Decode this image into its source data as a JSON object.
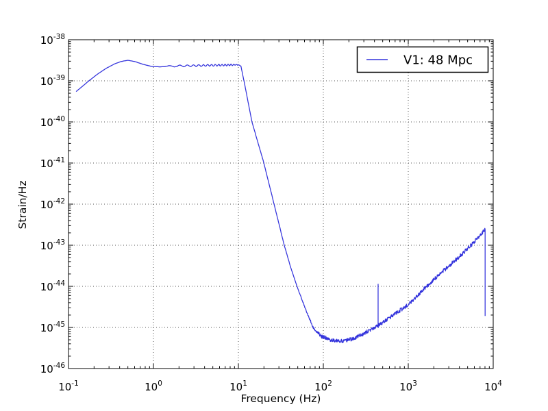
{
  "chart_data": {
    "type": "line",
    "title": "",
    "xlabel": "Frequency (Hz)",
    "ylabel": "Strain/Hz",
    "xscale": "log",
    "yscale": "log",
    "xlim": [
      0.1,
      10000
    ],
    "ylim": [
      1e-46,
      1e-38
    ],
    "x_tick_exponents": [
      -1,
      0,
      1,
      2,
      3,
      4
    ],
    "y_tick_exponents": [
      -38,
      -39,
      -40,
      -41,
      -42,
      -43,
      -44,
      -45,
      -46
    ],
    "grid": {
      "style": "dotted",
      "which": "major",
      "color": "#555555"
    },
    "legend": {
      "position": "upper-right",
      "entries": [
        {
          "label": "V1: 48 Mpc",
          "color": "#3232dc"
        }
      ]
    },
    "series": [
      {
        "name": "V1: 48 Mpc",
        "color": "#3232dc",
        "anchors_loglog": [
          [
            -0.91,
            -39.26
          ],
          [
            -0.84,
            -39.14
          ],
          [
            -0.76,
            -39.0
          ],
          [
            -0.66,
            -38.84
          ],
          [
            -0.56,
            -38.7
          ],
          [
            -0.46,
            -38.59
          ],
          [
            -0.38,
            -38.53
          ],
          [
            -0.3,
            -38.5
          ],
          [
            -0.22,
            -38.53
          ],
          [
            -0.12,
            -38.6
          ],
          [
            -0.02,
            -38.65
          ],
          [
            0.08,
            -38.66
          ],
          [
            0.25,
            -38.64
          ],
          [
            0.5,
            -38.63
          ],
          [
            0.75,
            -38.62
          ],
          [
            1.0,
            -38.61
          ],
          [
            1.03,
            -38.64
          ],
          [
            1.08,
            -39.15
          ],
          [
            1.16,
            -40.0
          ],
          [
            1.23,
            -40.5
          ],
          [
            1.3,
            -41.0
          ],
          [
            1.36,
            -41.5
          ],
          [
            1.42,
            -42.0
          ],
          [
            1.48,
            -42.5
          ],
          [
            1.54,
            -43.0
          ],
          [
            1.61,
            -43.5
          ],
          [
            1.69,
            -44.0
          ],
          [
            1.78,
            -44.5
          ],
          [
            1.88,
            -45.0
          ],
          [
            1.98,
            -45.22
          ],
          [
            2.1,
            -45.31
          ],
          [
            2.22,
            -45.33
          ],
          [
            2.35,
            -45.28
          ],
          [
            2.5,
            -45.12
          ],
          [
            2.645,
            -44.96
          ],
          [
            2.8,
            -44.73
          ],
          [
            3.0,
            -44.45
          ],
          [
            3.2,
            -44.03
          ],
          [
            3.4,
            -43.65
          ],
          [
            3.6,
            -43.28
          ],
          [
            3.75,
            -42.98
          ],
          [
            3.905,
            -42.62
          ]
        ],
        "spike": {
          "logf": 2.645,
          "log_base": -44.96,
          "log_top": -43.94
        },
        "end_drop": {
          "logf": 3.905,
          "log_from": -42.62,
          "log_to": -44.72
        },
        "noise_band": {
          "low_upto_logf": 0.1,
          "low_amp": 0.002,
          "base_amp": 0.004,
          "ramp_start_logf": 1.7,
          "ramp_end_logf": 2.0,
          "band_amp": 0.048
        },
        "plateau_wiggle": {
          "from_logf": 0.12,
          "to_logf": 1.03,
          "amp": 0.02
        }
      }
    ]
  }
}
